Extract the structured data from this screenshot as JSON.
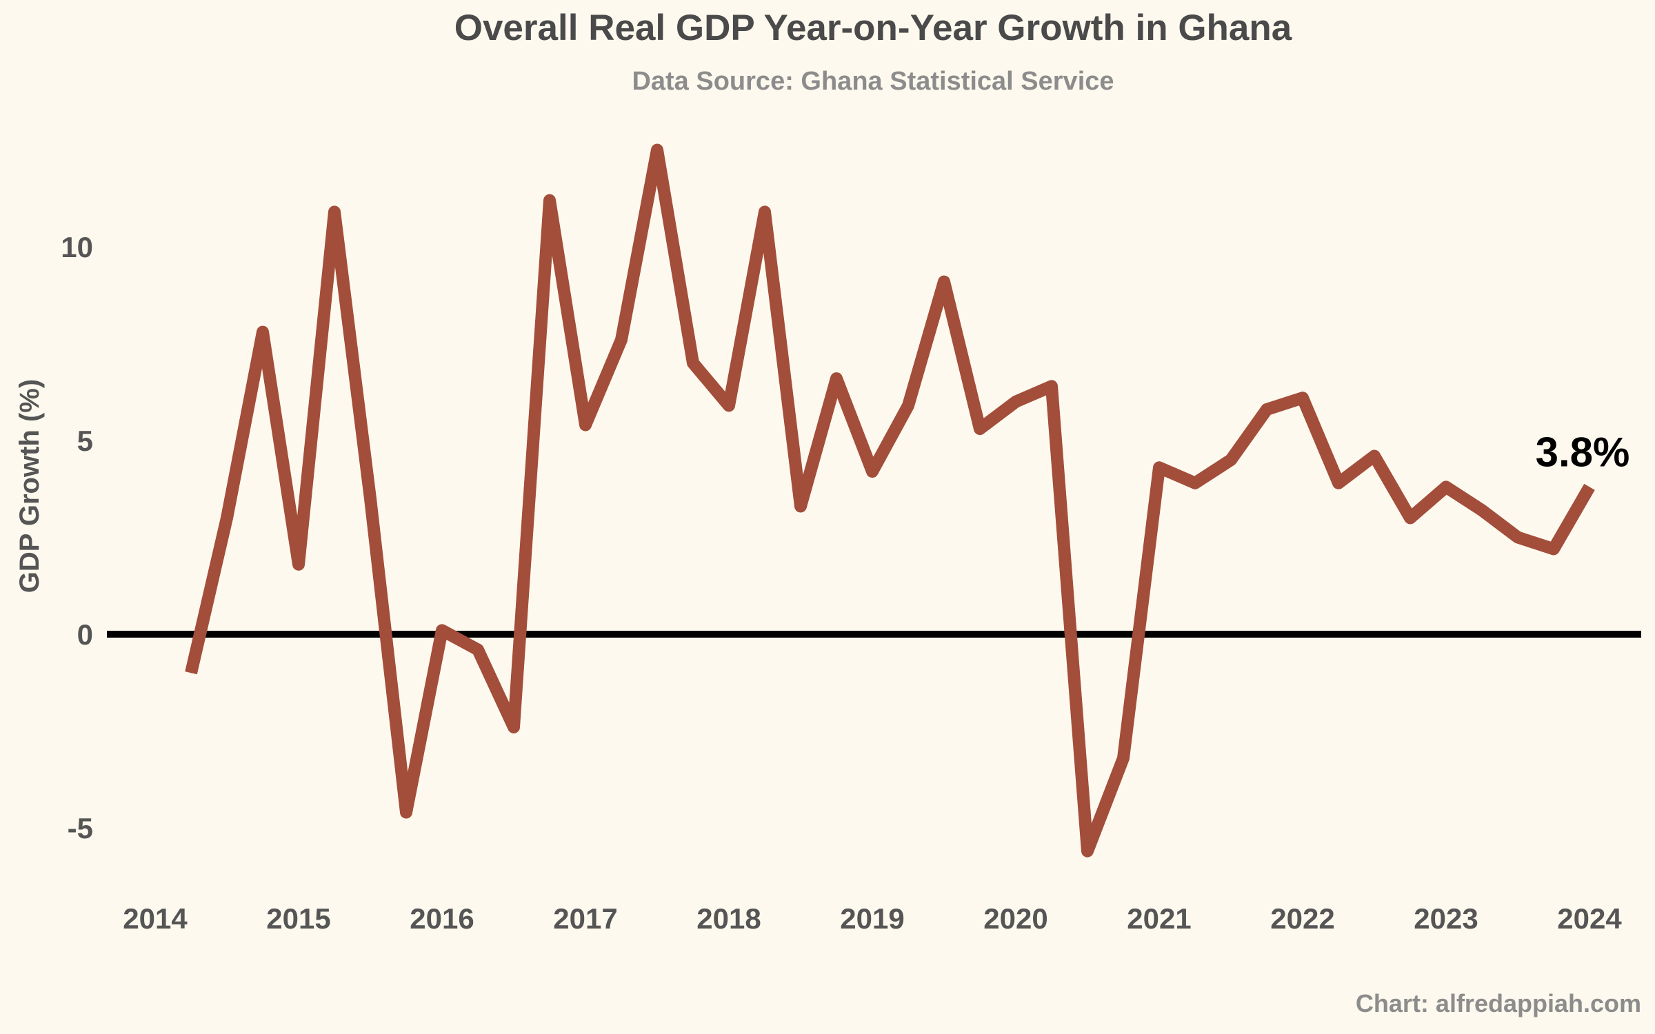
{
  "chart_data": {
    "type": "line",
    "title": "Overall Real GDP Year-on-Year Growth in Ghana",
    "subtitle": "Data Source: Ghana Statistical Service",
    "ylabel": "GDP Growth (%)",
    "xlabel": "",
    "credit": "Chart: alfredappiah.com",
    "end_label": "3.8%",
    "xlim": [
      2014,
      2024
    ],
    "ylim": [
      -6.5,
      13.5
    ],
    "x_ticks": [
      "2014",
      "2015",
      "2016",
      "2017",
      "2018",
      "2019",
      "2020",
      "2021",
      "2022",
      "2023",
      "2024"
    ],
    "y_ticks": [
      -5,
      0,
      5,
      10
    ],
    "y_tick_labels": [
      "-5",
      "0",
      "5",
      "10"
    ],
    "grid": false,
    "zero_line": true,
    "colors": {
      "line": "#a34d3b",
      "zero_line": "#000000",
      "background": "#fdf9ee",
      "title": "#4a4a4a",
      "subtitle": "#8c8c8c",
      "tick": "#555555"
    },
    "series": [
      {
        "x": [
          2014.25,
          2014.5,
          2014.75,
          2015.0,
          2015.25,
          2015.5,
          2015.75,
          2016.0,
          2016.25,
          2016.5,
          2016.75,
          2017.0,
          2017.25,
          2017.5,
          2017.75,
          2018.0,
          2018.25,
          2018.5,
          2018.75,
          2019.0,
          2019.25,
          2019.5,
          2019.75,
          2020.0,
          2020.25,
          2020.5,
          2020.75,
          2021.0,
          2021.25,
          2021.5,
          2021.75,
          2022.0,
          2022.25,
          2022.5,
          2022.75,
          2023.0,
          2023.25,
          2023.5,
          2023.75,
          2024.0
        ],
        "values": [
          -1.0,
          3.0,
          7.8,
          1.8,
          10.9,
          3.5,
          -4.6,
          0.1,
          -0.4,
          -2.4,
          11.2,
          5.4,
          7.6,
          12.5,
          7.0,
          5.9,
          10.9,
          3.3,
          6.6,
          4.2,
          5.9,
          9.1,
          5.3,
          6.0,
          6.4,
          -5.6,
          -3.2,
          4.3,
          3.9,
          4.5,
          5.8,
          6.1,
          3.9,
          4.6,
          3.0,
          3.8,
          3.2,
          2.5,
          2.2,
          3.8
        ]
      }
    ]
  }
}
